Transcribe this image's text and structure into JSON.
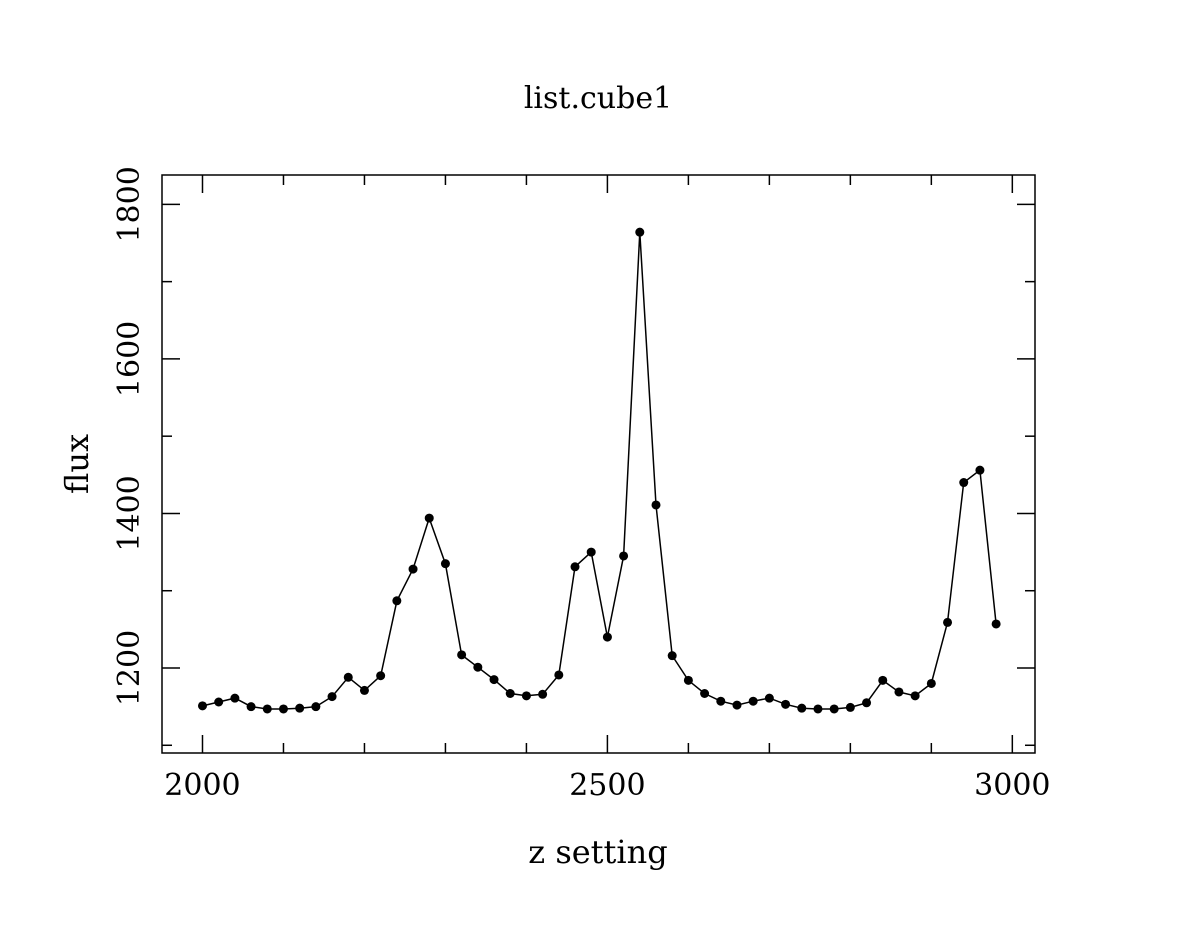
{
  "chart_data": {
    "type": "line",
    "title": "list.cube1",
    "xlabel": "z setting",
    "ylabel": "flux",
    "xlim": [
      1950,
      3028
    ],
    "ylim": [
      1090,
      1838
    ],
    "xticks": [
      2000,
      2500,
      3000
    ],
    "yticks": [
      1200,
      1400,
      1600,
      1800
    ],
    "grid": false,
    "markers": true,
    "line_color": "#000000",
    "series": [
      {
        "x": [
          2000,
          2020,
          2040,
          2060,
          2080,
          2100,
          2120,
          2140,
          2160,
          2180,
          2200,
          2220,
          2240,
          2260,
          2280,
          2300,
          2320,
          2340,
          2360,
          2380,
          2400,
          2420,
          2440,
          2460,
          2480,
          2500,
          2520,
          2540,
          2560,
          2580,
          2600,
          2620,
          2640,
          2660,
          2680,
          2700,
          2720,
          2740,
          2760,
          2780,
          2800,
          2820,
          2840,
          2860,
          2880,
          2900,
          2920,
          2940,
          2960,
          2980
        ],
        "values": [
          1151,
          1156,
          1161,
          1150,
          1147,
          1147,
          1148,
          1150,
          1163,
          1188,
          1171,
          1190,
          1287,
          1328,
          1394,
          1335,
          1217,
          1201,
          1185,
          1167,
          1164,
          1166,
          1191,
          1331,
          1350,
          1240,
          1345,
          1764,
          1411,
          1216,
          1184,
          1167,
          1157,
          1152,
          1157,
          1161,
          1153,
          1148,
          1147,
          1147,
          1149,
          1155,
          1184,
          1169,
          1164,
          1180,
          1259,
          1440,
          1456,
          1257
        ]
      }
    ]
  }
}
